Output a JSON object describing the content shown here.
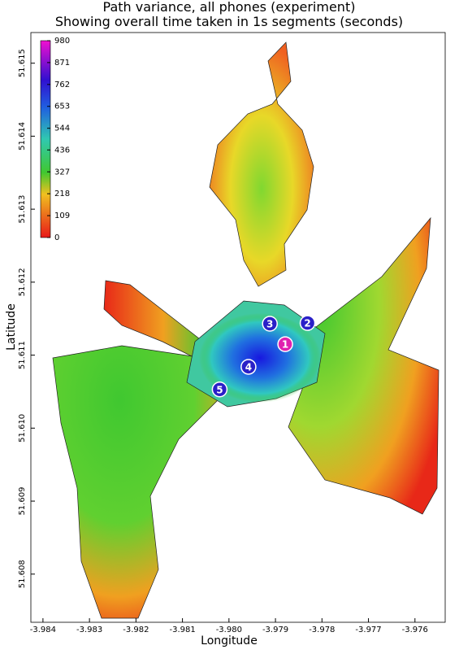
{
  "chart_data": {
    "type": "map",
    "title": "Path variance, all phones (experiment)",
    "subtitle": "Showing overall time taken in 1s segments (seconds)",
    "x_label": "Longitude",
    "y_label": "Latitude",
    "xlim": [
      -3.98426,
      -3.97535
    ],
    "xticks": [
      -3.984,
      -3.983,
      -3.982,
      -3.981,
      {
        "value": -3.98,
        "label": "-3.980"
      },
      -3.979,
      -3.978,
      -3.977,
      -3.976
    ],
    "ylim": [
      51.60734,
      51.61542
    ],
    "yticks": [
      51.608,
      51.609,
      {
        "value": 51.61,
        "label": "51.610"
      },
      51.611,
      51.612,
      51.613,
      51.614,
      51.615
    ],
    "clim": [
      0,
      980
    ],
    "cticks": [
      0,
      109,
      218,
      327,
      436,
      544,
      653,
      762,
      871,
      980
    ],
    "markers": {
      "labels": [
        "1",
        "2",
        "3",
        "4",
        "5"
      ],
      "x": [
        -3.97879,
        -3.97831,
        -3.97912,
        -3.97958,
        -3.9802
      ],
      "y": [
        51.61115,
        51.61144,
        51.61143,
        51.61084,
        51.61053
      ],
      "colors": [
        "#e020b0",
        "#2a20c8",
        "#2a20c8",
        "#2a20c8",
        "#2a20c8"
      ]
    }
  }
}
